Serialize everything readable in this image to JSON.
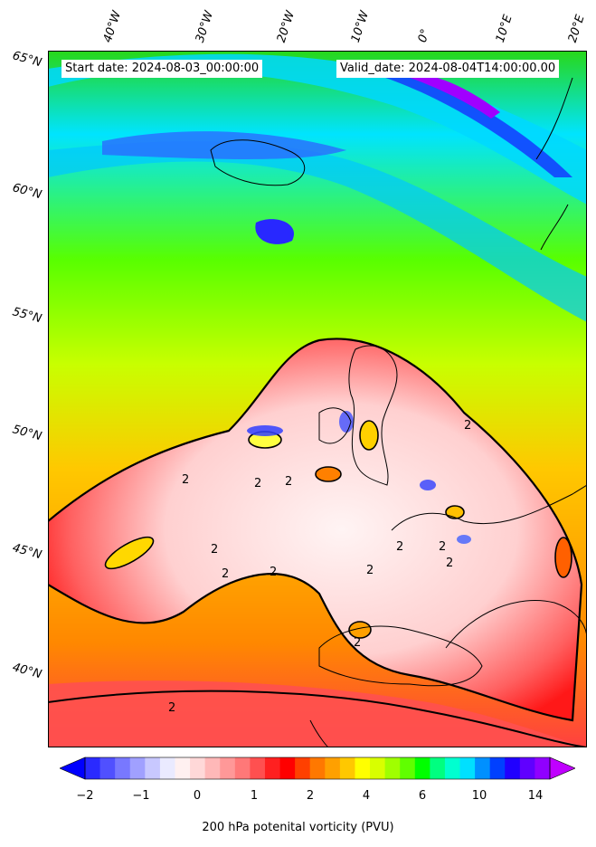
{
  "map": {
    "start_date": "Start date: 2024-08-03_00:00:00",
    "valid_date": "Valid_date: 2024-08-04T14:00:00.00",
    "lat_labels": [
      "65°N",
      "60°N",
      "55°N",
      "50°N",
      "45°N",
      "40°N"
    ],
    "lon_labels": [
      "40°W",
      "30°W",
      "20°W",
      "10°W",
      "0°",
      "10°E",
      "20°E"
    ],
    "contour_labels": [
      "2",
      "2",
      "2",
      "2",
      "2",
      "2",
      "2",
      "2",
      "2",
      "2",
      "2",
      "2",
      "2"
    ]
  },
  "colorbar": {
    "label": "200 hPa potenital vorticity (PVU)",
    "ticks": [
      "−2",
      "−1",
      "0",
      "1",
      "2",
      "4",
      "6",
      "10",
      "14"
    ],
    "colors": [
      "#0000ff",
      "#2a2aff",
      "#5050ff",
      "#7878ff",
      "#a0a0ff",
      "#c8c8ff",
      "#eaeaff",
      "#fff0f0",
      "#ffd8d8",
      "#ffb8b8",
      "#ff9898",
      "#ff7878",
      "#ff5050",
      "#ff2020",
      "#ff0000",
      "#ff4000",
      "#ff7800",
      "#ffa000",
      "#ffc800",
      "#ffff00",
      "#d8ff00",
      "#a0ff00",
      "#60ff00",
      "#00ff00",
      "#00ff80",
      "#00ffd0",
      "#00e0ff",
      "#0090ff",
      "#0040ff",
      "#2000ff",
      "#6000ff",
      "#9000ff",
      "#c000ff"
    ]
  }
}
